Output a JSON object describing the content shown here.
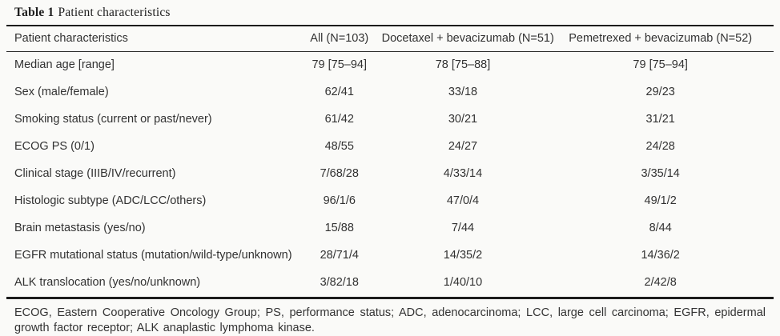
{
  "title": {
    "prefix": "Table 1",
    "text": "Patient characteristics"
  },
  "table": {
    "columns": [
      "Patient characteristics",
      "All (N=103)",
      "Docetaxel + bevacizumab (N=51)",
      "Pemetrexed + bevacizumab (N=52)"
    ],
    "rows": [
      {
        "label": "Median age [range]",
        "values": [
          "79 [75–94]",
          "78 [75–88]",
          "79 [75–94]"
        ]
      },
      {
        "label": "Sex (male/female)",
        "values": [
          "62/41",
          "33/18",
          "29/23"
        ]
      },
      {
        "label": "Smoking status (current or past/never)",
        "values": [
          "61/42",
          "30/21",
          "31/21"
        ]
      },
      {
        "label": "ECOG PS (0/1)",
        "values": [
          "48/55",
          "24/27",
          "24/28"
        ]
      },
      {
        "label": "Clinical stage (IIIB/IV/recurrent)",
        "values": [
          "7/68/28",
          "4/33/14",
          "3/35/14"
        ]
      },
      {
        "label": "Histologic subtype (ADC/LCC/others)",
        "values": [
          "96/1/6",
          "47/0/4",
          "49/1/2"
        ]
      },
      {
        "label": "Brain metastasis (yes/no)",
        "values": [
          "15/88",
          "7/44",
          "8/44"
        ]
      },
      {
        "label": "EGFR mutational status (mutation/wild-type/​unknown)",
        "values": [
          "28/71/4",
          "14/35/2",
          "14/36/2"
        ]
      },
      {
        "label": "ALK translocation (yes/no/unknown)",
        "values": [
          "3/82/18",
          "1/40/10",
          "2/42/8"
        ]
      }
    ]
  },
  "footnote": "ECOG, Eastern Cooperative Oncology Group; PS, performance status; ADC, adenocarcinoma; LCC, large cell carcinoma; EGFR, epidermal growth factor receptor; ALK anaplastic lymphoma kinase.",
  "colors": {
    "background": "#fafaf8",
    "rule": "#1c1c1c",
    "text": "#333333"
  }
}
